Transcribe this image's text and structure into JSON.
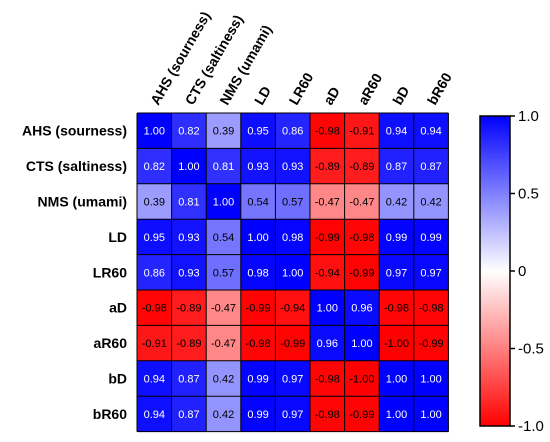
{
  "chart_data": {
    "type": "heatmap",
    "rows": [
      "AHS (sourness)",
      "CTS (saltiness)",
      "NMS (umami)",
      "LD",
      "LR60",
      "aD",
      "aR60",
      "bD",
      "bR60"
    ],
    "columns": [
      "AHS (sourness)",
      "CTS (saltiness)",
      "NMS (umami)",
      "LD",
      "LR60",
      "aD",
      "aR60",
      "bD",
      "bR60"
    ],
    "values": [
      [
        1.0,
        0.82,
        0.39,
        0.95,
        0.86,
        -0.98,
        -0.91,
        0.94,
        0.94
      ],
      [
        0.82,
        1.0,
        0.81,
        0.93,
        0.93,
        -0.89,
        -0.89,
        0.87,
        0.87
      ],
      [
        0.39,
        0.81,
        1.0,
        0.54,
        0.57,
        -0.47,
        -0.47,
        0.42,
        0.42
      ],
      [
        0.95,
        0.93,
        0.54,
        1.0,
        0.98,
        -0.99,
        -0.98,
        0.99,
        0.99
      ],
      [
        0.86,
        0.93,
        0.57,
        0.98,
        1.0,
        -0.94,
        -0.99,
        0.97,
        0.97
      ],
      [
        -0.98,
        -0.89,
        -0.47,
        -0.99,
        -0.94,
        1.0,
        0.96,
        -0.98,
        -0.98
      ],
      [
        -0.91,
        -0.89,
        -0.47,
        -0.98,
        -0.99,
        0.96,
        1.0,
        -1.0,
        -0.99
      ],
      [
        0.94,
        0.87,
        0.42,
        0.99,
        0.97,
        -0.98,
        -1.0,
        1.0,
        1.0
      ],
      [
        0.94,
        0.87,
        0.42,
        0.99,
        0.97,
        -0.98,
        -0.99,
        1.0,
        1.0
      ]
    ],
    "value_labels": [
      [
        "1.00",
        "0.82",
        "0.39",
        "0.95",
        "0.86",
        "-0.98",
        "-0.91",
        "0.94",
        "0.94"
      ],
      [
        "0.82",
        "1.00",
        "0.81",
        "0.93",
        "0.93",
        "-0.89",
        "-0.89",
        "0.87",
        "0.87"
      ],
      [
        "0.39",
        "0.81",
        "1.00",
        "0.54",
        "0.57",
        "-0.47",
        "-0.47",
        "0.42",
        "0.42"
      ],
      [
        "0.95",
        "0.93",
        "0.54",
        "1.00",
        "0.98",
        "-0.99",
        "-0.98",
        "0.99",
        "0.99"
      ],
      [
        "0.86",
        "0.93",
        "0.57",
        "0.98",
        "1.00",
        "-0.94",
        "-0.99",
        "0.97",
        "0.97"
      ],
      [
        "-0.98",
        "-0.89",
        "-0.47",
        "-0.99",
        "-0.94",
        "1.00",
        "0.96",
        "-0.98",
        "-0.98"
      ],
      [
        "-0.91",
        "-0.89",
        "-0.47",
        "-0.98",
        "-0.99",
        "0.96",
        "1.00",
        "-1.00",
        "-0.99"
      ],
      [
        "0.94",
        "0.87",
        "0.42",
        "0.99",
        "0.97",
        "-0.98",
        "-1.00",
        "1.00",
        "1.00"
      ],
      [
        "0.94",
        "0.87",
        "0.42",
        "0.99",
        "0.97",
        "-0.98",
        "-0.99",
        "1.00",
        "1.00"
      ]
    ],
    "color_scale": {
      "min": -1.0,
      "max": 1.0,
      "low_color": "#ff0000",
      "mid_color": "#ffffff",
      "high_color": "#0000ff"
    },
    "colorbar": {
      "ticks": [
        1.0,
        0.5,
        0,
        -0.5,
        -1.0
      ],
      "tick_labels": [
        "1.0",
        "0.5",
        "0",
        "-0.5",
        "-1.0"
      ]
    },
    "title": "",
    "xlabel": "",
    "ylabel": ""
  }
}
